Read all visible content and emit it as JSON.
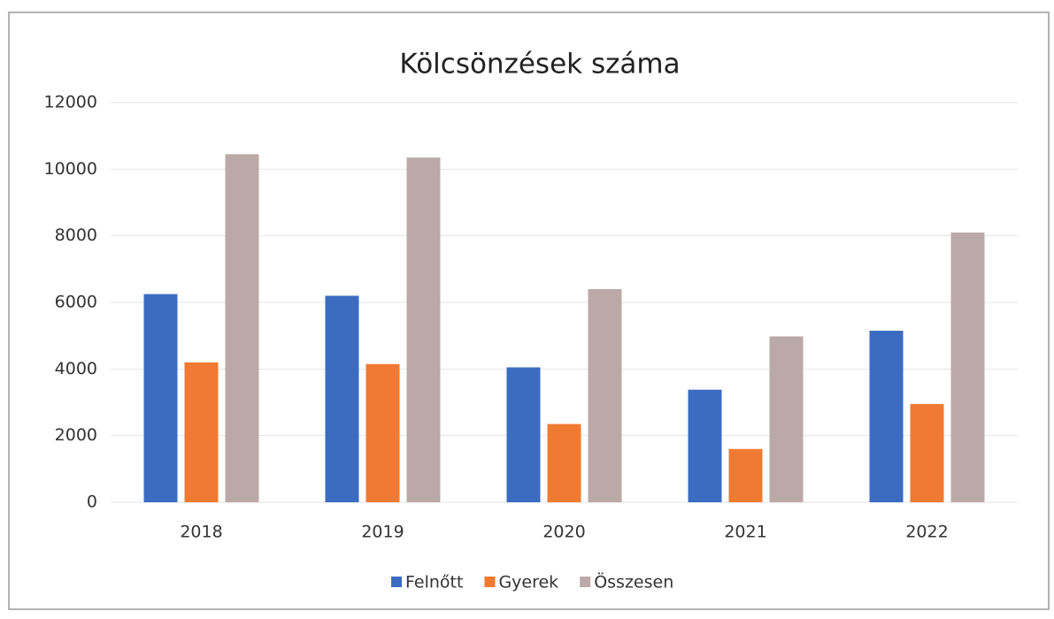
{
  "chart_data": {
    "type": "bar",
    "title": "Kölcsönzések száma",
    "categories": [
      "2018",
      "2019",
      "2020",
      "2021",
      "2022"
    ],
    "series": [
      {
        "name": "Felnőtt",
        "color": "#3b6cc2",
        "values": [
          6250,
          6200,
          4050,
          3380,
          5150
        ]
      },
      {
        "name": "Gyerek",
        "color": "#f07a32",
        "values": [
          4200,
          4150,
          2350,
          1600,
          2950
        ]
      },
      {
        "name": "Összesen",
        "color": "#bba9a8",
        "values": [
          10450,
          10350,
          6400,
          4980,
          8100
        ]
      }
    ],
    "ylim": [
      0,
      12000
    ],
    "yticks": [
      0,
      2000,
      4000,
      6000,
      8000,
      10000,
      12000
    ],
    "grid": true,
    "legend": "bottom"
  }
}
